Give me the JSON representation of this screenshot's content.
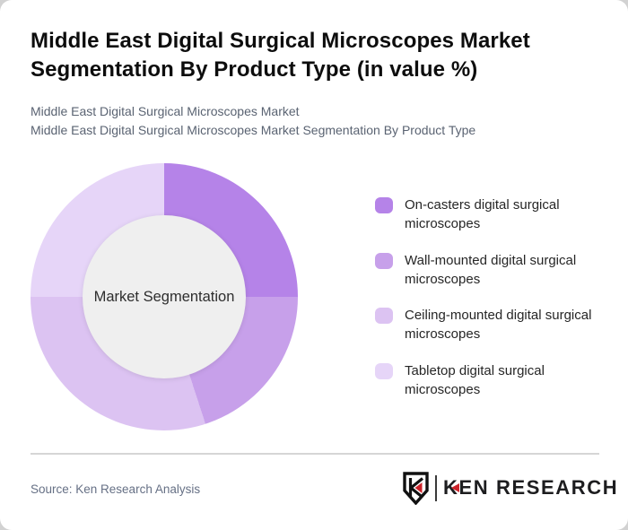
{
  "header": {
    "title": "Middle East Digital Surgical Microscopes Market\nSegmentation By Product Type (in value %)",
    "subtitles": [
      "Middle East Digital Surgical Microscopes Market",
      "Middle East Digital Surgical Microscopes Market Segmentation By Product Type"
    ]
  },
  "chart_data": {
    "type": "pie",
    "subtype": "donut",
    "title": "Middle East Digital Surgical Microscopes Market Segmentation By Product Type (in value %)",
    "center_label": "Market Segmentation",
    "start_angle_deg": 0,
    "direction": "clockwise",
    "legend_position": "right",
    "unit": "%",
    "categories": [
      "On-casters digital surgical microscopes",
      "Wall-mounted digital surgical microscopes",
      "Ceiling-mounted digital surgical microscopes",
      "Tabletop digital surgical microscopes"
    ],
    "values": [
      25,
      20,
      30,
      25
    ],
    "colors": [
      "#b583e8",
      "#c7a0ea",
      "#dcc3f2",
      "#e6d5f8"
    ],
    "hole_color": "#efefef"
  },
  "footer": {
    "source": "Source: Ken Research Analysis",
    "logo": {
      "monogram": "K",
      "brand": "KEN RESEARCH",
      "accent_color": "#cc2229"
    }
  }
}
